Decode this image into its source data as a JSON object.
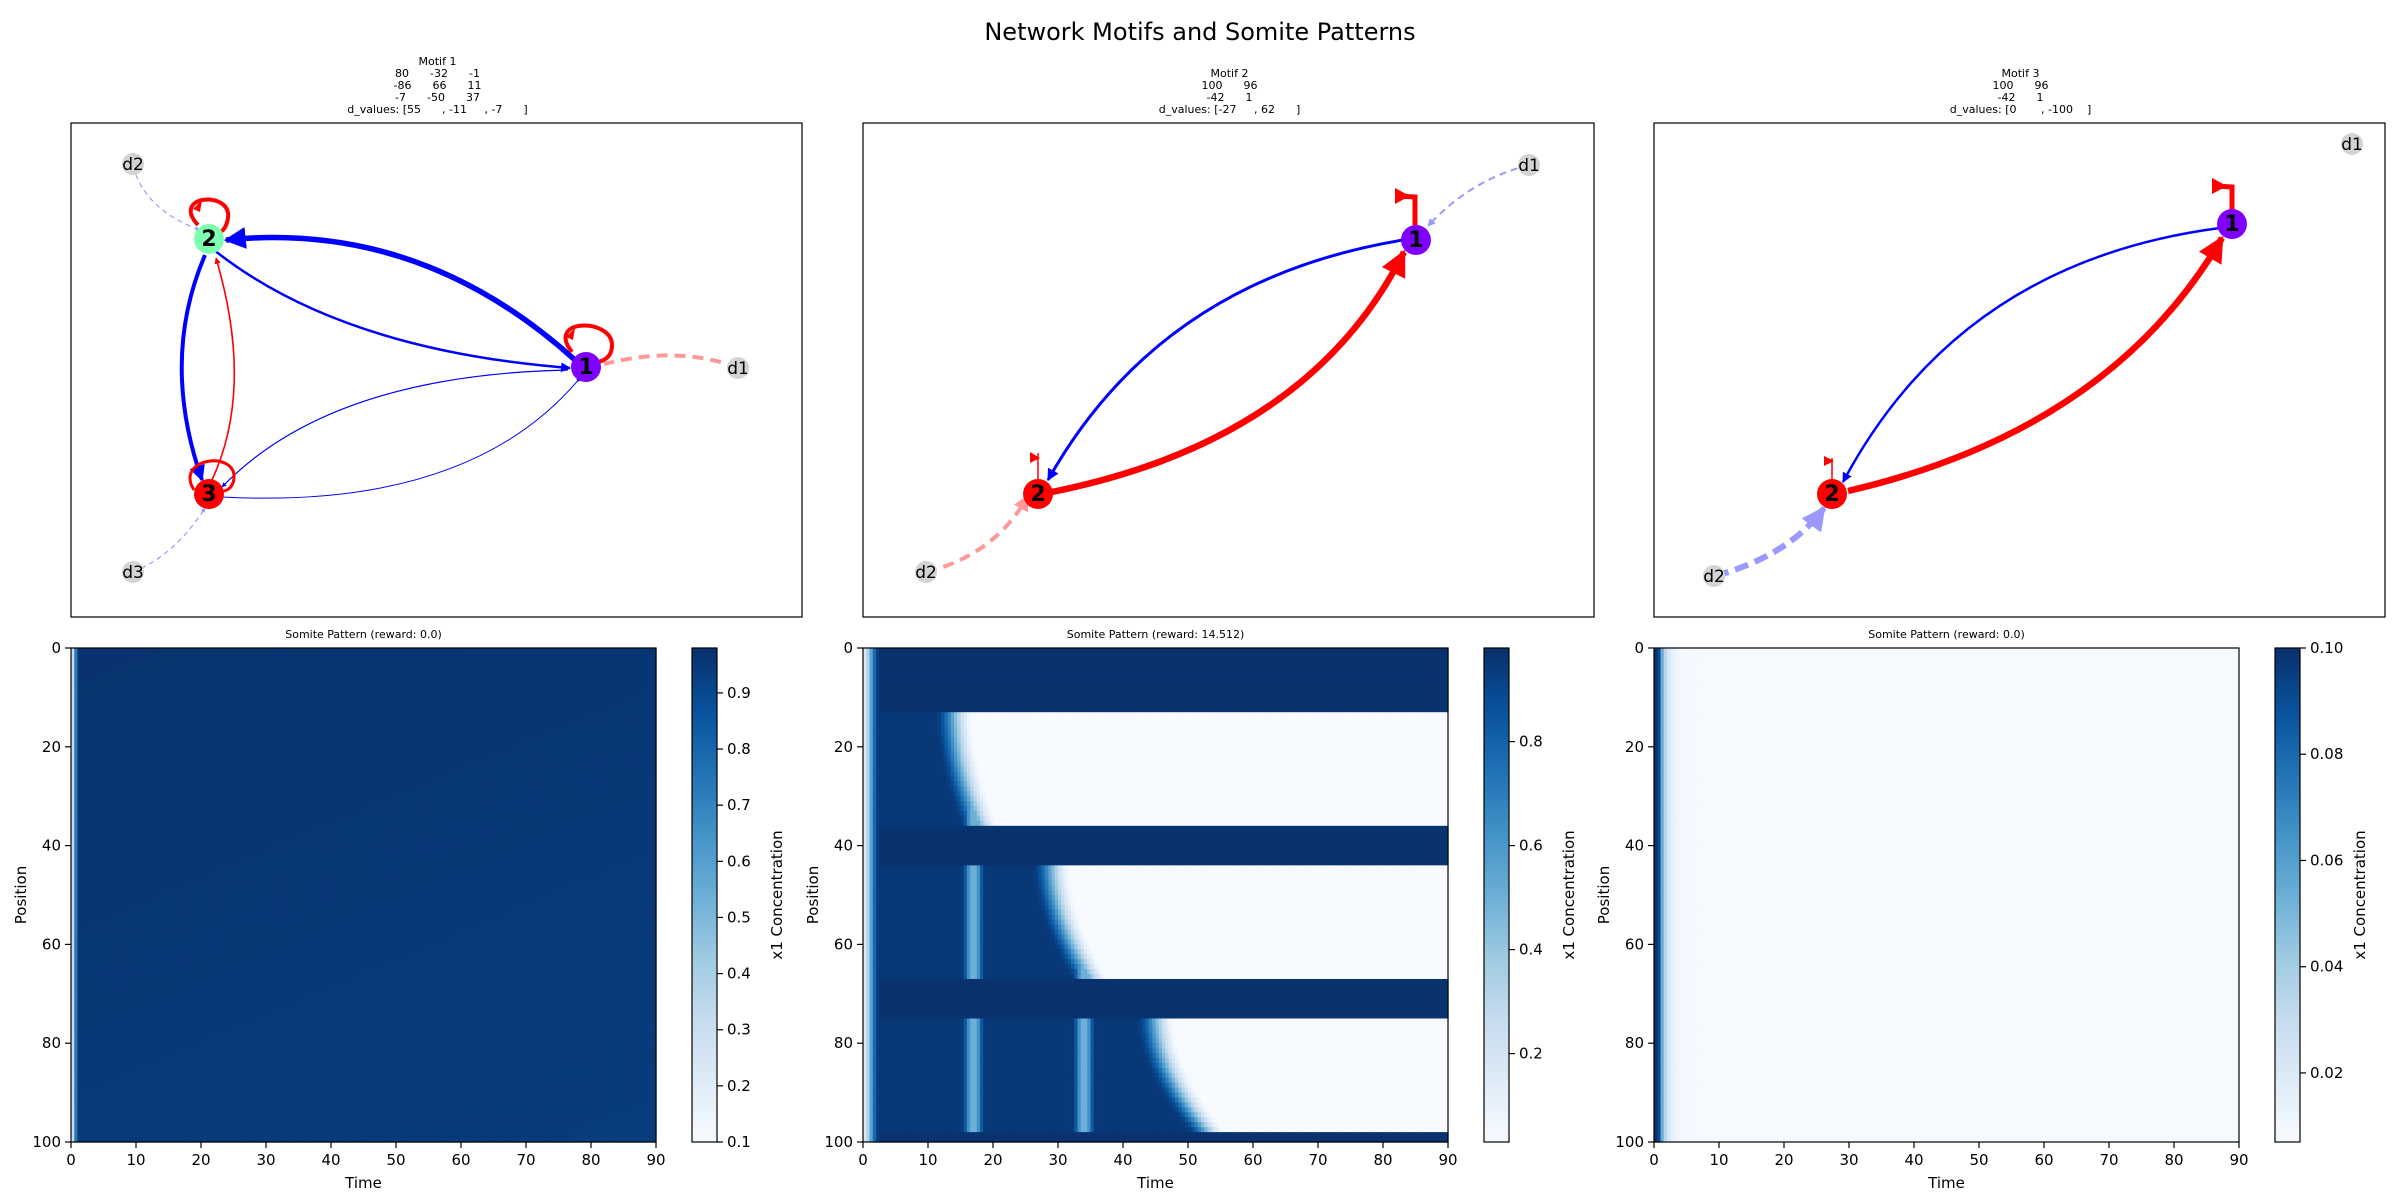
{
  "suptitle": "Network Motifs and Somite Patterns",
  "motifs": [
    {
      "title_lines": [
        "Motif 1",
        "80      -32      -1",
        "-86      66      11",
        "-7      -50      37",
        "d_values: [55      , -11     , -7      ]"
      ]
    },
    {
      "title_lines": [
        "Motif 2",
        "100      96",
        "-42      1",
        "d_values: [-27     , 62      ]"
      ]
    },
    {
      "title_lines": [
        "Motif 3",
        "100      96",
        "-42      1",
        "d_values: [0       , -100    ]"
      ]
    }
  ],
  "node_labels": [
    "1",
    "2",
    "3",
    "d1",
    "d2",
    "d3"
  ],
  "colors": {
    "activation": "#ff0000",
    "repression": "#0000ff",
    "input_node": "#d3d3d3",
    "activation_input": "#ff9999",
    "repression_input": "#9999ff"
  },
  "chart_data": [
    {
      "type": "heatmap",
      "title": "Somite Pattern (reward: 0.0)",
      "xlabel": "Time",
      "ylabel": "Position",
      "xlim": [
        0,
        90
      ],
      "ylim": [
        100,
        0
      ],
      "xticks": [
        "0",
        "10",
        "20",
        "30",
        "40",
        "50",
        "60",
        "70",
        "80",
        "90"
      ],
      "yticks": [
        "0",
        "20",
        "40",
        "60",
        "80",
        "100"
      ],
      "colorbar_label": "x1 Concentration",
      "colorbar_range": [
        0.1,
        0.98
      ],
      "colorbar_ticks": [
        "0.1",
        "0.2",
        "0.3",
        "0.4",
        "0.5",
        "0.6",
        "0.7",
        "0.8",
        "0.9"
      ],
      "colormap": "Blues",
      "description_values": {
        "initial_low_until_time": 1,
        "steady_value": 0.95
      }
    },
    {
      "type": "heatmap",
      "title": "Somite Pattern (reward: 14.512)",
      "xlabel": "Time",
      "ylabel": "Position",
      "xlim": [
        0,
        90
      ],
      "ylim": [
        100,
        0
      ],
      "xticks": [
        "0",
        "10",
        "20",
        "30",
        "40",
        "50",
        "60",
        "70",
        "80",
        "90"
      ],
      "yticks": [
        "0",
        "20",
        "40",
        "60",
        "80",
        "100"
      ],
      "colorbar_label": "x1 Concentration",
      "colorbar_range": [
        0.03,
        0.98
      ],
      "colorbar_ticks": [
        "0.2",
        "0.4",
        "0.6",
        "0.8"
      ],
      "colormap": "Blues",
      "bands": [
        {
          "pos_from": 0,
          "pos_to": 13,
          "value": 0.97
        },
        {
          "pos_from": 36,
          "pos_to": 44,
          "value": 0.97
        },
        {
          "pos_from": 67,
          "pos_to": 75,
          "value": 0.97
        },
        {
          "pos_from": 98,
          "pos_to": 100,
          "value": 0.97
        }
      ],
      "fronts": [
        {
          "pos_from": 13,
          "pos_to": 36,
          "time_top": 15,
          "time_bottom": 19
        },
        {
          "pos_from": 44,
          "pos_to": 67,
          "time_top": 30,
          "time_bottom": 36
        },
        {
          "pos_from": 75,
          "pos_to": 98,
          "time_top": 46,
          "time_bottom": 54
        }
      ],
      "stripes": [
        {
          "time": 17,
          "value": 0.5
        },
        {
          "time": 34,
          "value": 0.5
        }
      ]
    },
    {
      "type": "heatmap",
      "title": "Somite Pattern (reward: 0.0)",
      "xlabel": "Time",
      "ylabel": "Position",
      "xlim": [
        0,
        90
      ],
      "ylim": [
        100,
        0
      ],
      "xticks": [
        "0",
        "10",
        "20",
        "30",
        "40",
        "50",
        "60",
        "70",
        "80",
        "90"
      ],
      "yticks": [
        "0",
        "20",
        "40",
        "60",
        "80",
        "100"
      ],
      "colorbar_label": "x1 Concentration",
      "colorbar_range": [
        0.007,
        0.1
      ],
      "colorbar_ticks": [
        "0.02",
        "0.04",
        "0.06",
        "0.08",
        "0.10"
      ],
      "colormap": "Blues",
      "description_values": {
        "peak_time": 0.5,
        "peak_value": 0.1,
        "steady_value": 0.008
      }
    }
  ]
}
